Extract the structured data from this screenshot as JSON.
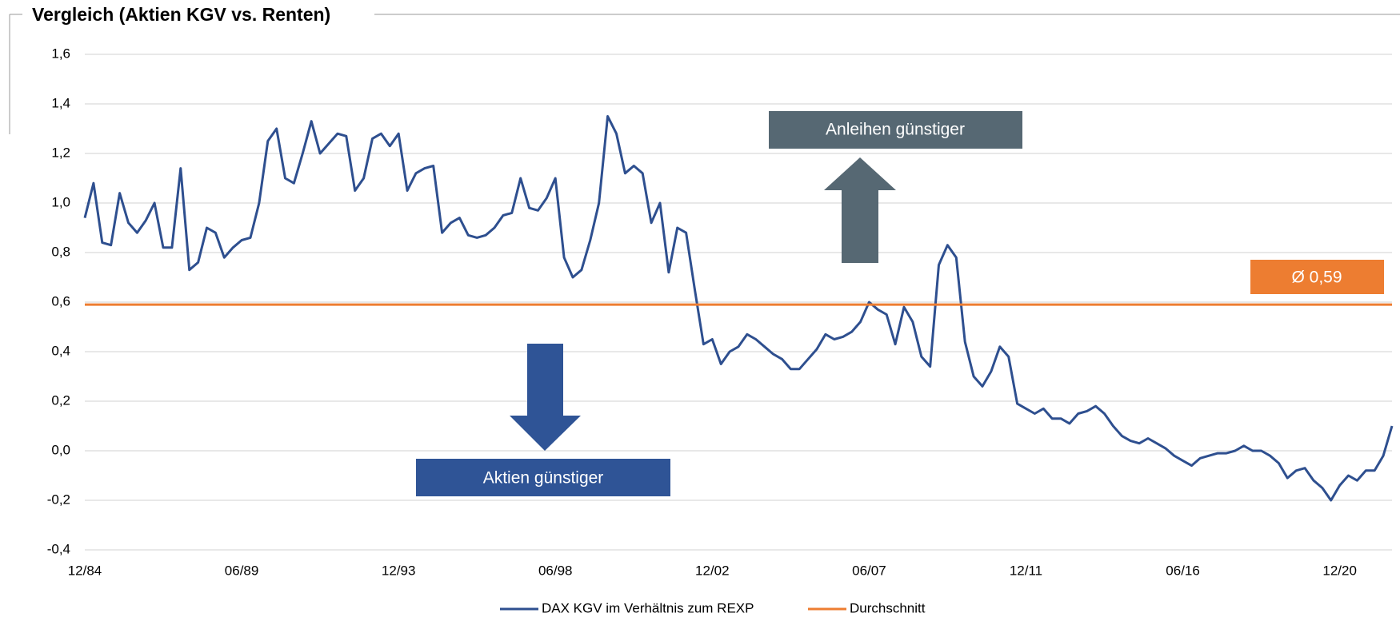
{
  "chart_data": {
    "type": "line",
    "title": "Vergleich (Aktien KGV vs. Renten)",
    "categories": [
      "12/84",
      null,
      null,
      null,
      null,
      null,
      null,
      null,
      null,
      null,
      null,
      null,
      null,
      null,
      null,
      null,
      null,
      null,
      "06/89",
      null,
      null,
      null,
      null,
      null,
      null,
      null,
      null,
      null,
      null,
      null,
      null,
      null,
      null,
      null,
      null,
      null,
      "12/93",
      null,
      null,
      null,
      null,
      null,
      null,
      null,
      null,
      null,
      null,
      null,
      null,
      null,
      null,
      null,
      null,
      null,
      "06/98",
      null,
      null,
      null,
      null,
      null,
      null,
      null,
      null,
      null,
      null,
      null,
      null,
      null,
      null,
      null,
      null,
      null,
      "12/02",
      null,
      null,
      null,
      null,
      null,
      null,
      null,
      null,
      null,
      null,
      null,
      null,
      null,
      null,
      null,
      null,
      null,
      "06/07",
      null,
      null,
      null,
      null,
      null,
      null,
      null,
      null,
      null,
      null,
      null,
      null,
      null,
      null,
      null,
      null,
      null,
      "12/11",
      null,
      null,
      null,
      null,
      null,
      null,
      null,
      null,
      null,
      null,
      null,
      null,
      null,
      null,
      null,
      null,
      null,
      "06/16",
      null,
      null,
      null,
      null,
      null,
      null,
      null,
      null,
      null,
      null,
      null,
      null,
      null,
      null,
      null,
      null,
      null,
      "12/20",
      null,
      null,
      null,
      null,
      null,
      null
    ],
    "series": [
      {
        "name": "DAX KGV im Verhältnis zum REXP",
        "color": "#2e4f8f",
        "values": [
          0.94,
          1.08,
          0.84,
          0.83,
          1.04,
          0.92,
          0.88,
          0.93,
          1.0,
          0.82,
          0.82,
          1.14,
          0.73,
          0.76,
          0.9,
          0.88,
          0.78,
          0.82,
          0.85,
          0.86,
          1.0,
          1.25,
          1.3,
          1.1,
          1.08,
          1.2,
          1.33,
          1.2,
          1.24,
          1.28,
          1.27,
          1.05,
          1.1,
          1.26,
          1.28,
          1.23,
          1.28,
          1.05,
          1.12,
          1.14,
          1.15,
          0.88,
          0.92,
          0.94,
          0.87,
          0.86,
          0.87,
          0.9,
          0.95,
          0.96,
          1.1,
          0.98,
          0.97,
          1.02,
          1.1,
          0.78,
          0.7,
          0.73,
          0.85,
          1.0,
          1.35,
          1.28,
          1.12,
          1.15,
          1.12,
          0.92,
          1.0,
          0.72,
          0.9,
          0.88,
          0.65,
          0.43,
          0.45,
          0.35,
          0.4,
          0.42,
          0.47,
          0.45,
          0.42,
          0.39,
          0.37,
          0.33,
          0.33,
          0.37,
          0.41,
          0.47,
          0.45,
          0.46,
          0.48,
          0.52,
          0.6,
          0.57,
          0.55,
          0.43,
          0.58,
          0.52,
          0.38,
          0.34,
          0.75,
          0.83,
          0.78,
          0.44,
          0.3,
          0.26,
          0.32,
          0.42,
          0.38,
          0.19,
          0.17,
          0.15,
          0.17,
          0.13,
          0.13,
          0.11,
          0.15,
          0.16,
          0.18,
          0.15,
          0.1,
          0.06,
          0.04,
          0.03,
          0.05,
          0.03,
          0.01,
          -0.02,
          -0.04,
          -0.06,
          -0.03,
          -0.02,
          -0.01,
          -0.01,
          0.0,
          0.02,
          0.0,
          0.0,
          -0.02,
          -0.05,
          -0.11,
          -0.08,
          -0.07,
          -0.12,
          -0.15,
          -0.2,
          -0.14,
          -0.1,
          -0.12,
          -0.08,
          -0.08,
          -0.02,
          0.1
        ]
      }
    ],
    "average": {
      "name": "Durchschnitt",
      "color": "#ed7d31",
      "value": 0.59,
      "label": "Ø 0,59"
    },
    "annotations": {
      "bonds_cheaper": "Anleihen günstiger",
      "stocks_cheaper": "Aktien günstiger"
    },
    "ylim": [
      -0.4,
      1.6
    ],
    "yticks": [
      {
        "value": -0.4,
        "label": "-0,4"
      },
      {
        "value": -0.2,
        "label": "-0,2"
      },
      {
        "value": 0,
        "label": "0,0"
      },
      {
        "value": 0.2,
        "label": "0,2"
      },
      {
        "value": 0.4,
        "label": "0,4"
      },
      {
        "value": 0.6,
        "label": "0,6"
      },
      {
        "value": 0.8,
        "label": "0,8"
      },
      {
        "value": 1.0,
        "label": "1,0"
      },
      {
        "value": 1.2,
        "label": "1,2"
      },
      {
        "value": 1.4,
        "label": "1,4"
      },
      {
        "value": 1.6,
        "label": "1,6"
      }
    ],
    "grid": true
  }
}
